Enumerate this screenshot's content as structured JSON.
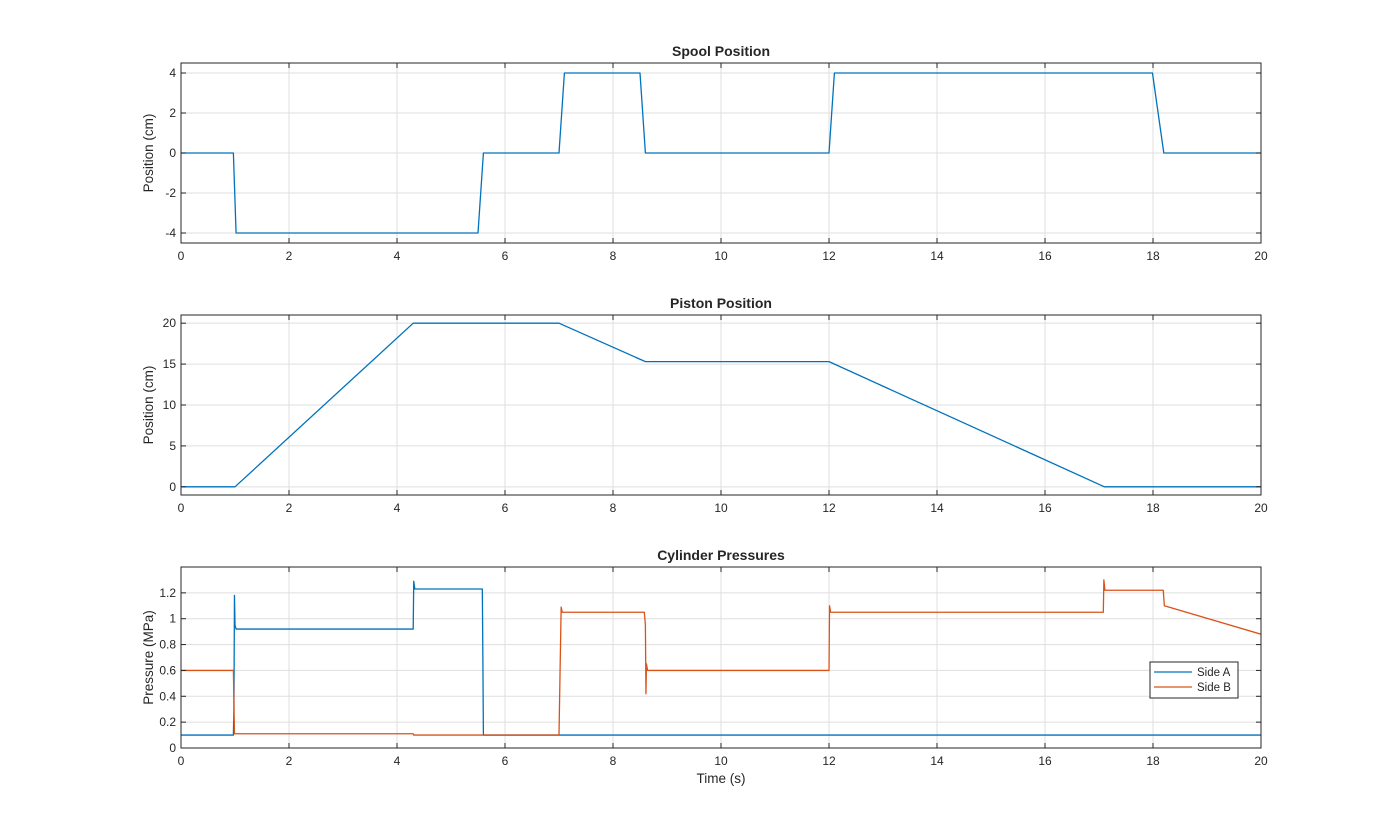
{
  "chart_data": [
    {
      "type": "line",
      "title": "Spool Position",
      "xlabel": "",
      "ylabel": "Position (cm)",
      "xlim": [
        0,
        20
      ],
      "ylim": [
        -4.5,
        4.5
      ],
      "xticks": [
        0,
        2,
        4,
        6,
        8,
        10,
        12,
        14,
        16,
        18,
        20
      ],
      "yticks": [
        -4,
        -2,
        0,
        2,
        4
      ],
      "ytick_labels": [
        "-4",
        "-2",
        "0",
        "2",
        "4"
      ],
      "grid": true,
      "series": [
        {
          "color": "#0072BD",
          "x": [
            0,
            0.97,
            1.02,
            5.5,
            5.6,
            7.0,
            7.1,
            8.5,
            8.6,
            12.0,
            12.1,
            17.99,
            18.2,
            20
          ],
          "y": [
            0,
            0,
            -4,
            -4,
            0,
            0,
            4,
            4,
            0,
            0,
            4,
            4,
            0,
            0
          ]
        }
      ]
    },
    {
      "type": "line",
      "title": "Piston Position",
      "xlabel": "",
      "ylabel": "Position (cm)",
      "xlim": [
        0,
        20
      ],
      "ylim": [
        -1,
        21
      ],
      "xticks": [
        0,
        2,
        4,
        6,
        8,
        10,
        12,
        14,
        16,
        18,
        20
      ],
      "yticks": [
        0,
        5,
        10,
        15,
        20
      ],
      "ytick_labels": [
        "0",
        "5",
        "10",
        "15",
        "20"
      ],
      "grid": true,
      "series": [
        {
          "color": "#0072BD",
          "x": [
            0,
            1.0,
            4.3,
            7.0,
            8.6,
            12.0,
            17.1,
            20
          ],
          "y": [
            0,
            0,
            20,
            20,
            15.3,
            15.3,
            0,
            0
          ]
        }
      ]
    },
    {
      "type": "line",
      "title": "Cylinder Pressures",
      "xlabel": "Time (s)",
      "ylabel": "Pressure (MPa)",
      "xlim": [
        0,
        20
      ],
      "ylim": [
        0,
        1.4
      ],
      "xticks": [
        0,
        2,
        4,
        6,
        8,
        10,
        12,
        14,
        16,
        18,
        20
      ],
      "yticks": [
        0,
        0.2,
        0.4,
        0.6,
        0.8,
        1,
        1.2
      ],
      "ytick_labels": [
        "0",
        "0.2",
        "0.4",
        "0.6",
        "0.8",
        "1",
        "1.2"
      ],
      "grid": true,
      "legend": "right",
      "series": [
        {
          "name": "Side A",
          "color": "#0072BD",
          "x": [
            0,
            0.97,
            0.98,
            0.99,
            1.0,
            1.02,
            4.28,
            4.3,
            4.31,
            4.33,
            4.35,
            5.58,
            5.59,
            5.6,
            20
          ],
          "y": [
            0.1,
            0.1,
            0.3,
            1.18,
            0.95,
            0.92,
            0.92,
            0.92,
            1.29,
            1.23,
            1.23,
            1.23,
            0.7,
            0.1,
            0.1
          ]
        },
        {
          "name": "Side B",
          "color": "#D95319",
          "x": [
            0,
            0.97,
            0.99,
            1.01,
            4.3,
            4.31,
            7.0,
            7.02,
            7.04,
            7.06,
            8.58,
            8.6,
            8.61,
            8.62,
            8.64,
            12.0,
            12.01,
            12.03,
            12.05,
            17.08,
            17.09,
            17.11,
            17.13,
            18.19,
            18.21,
            20
          ],
          "y": [
            0.6,
            0.6,
            0.11,
            0.11,
            0.11,
            0.1,
            0.1,
            0.6,
            1.09,
            1.05,
            1.05,
            0.95,
            0.42,
            0.65,
            0.6,
            0.6,
            1.1,
            1.05,
            1.05,
            1.05,
            1.3,
            1.22,
            1.22,
            1.22,
            1.1,
            0.88
          ]
        }
      ]
    }
  ]
}
